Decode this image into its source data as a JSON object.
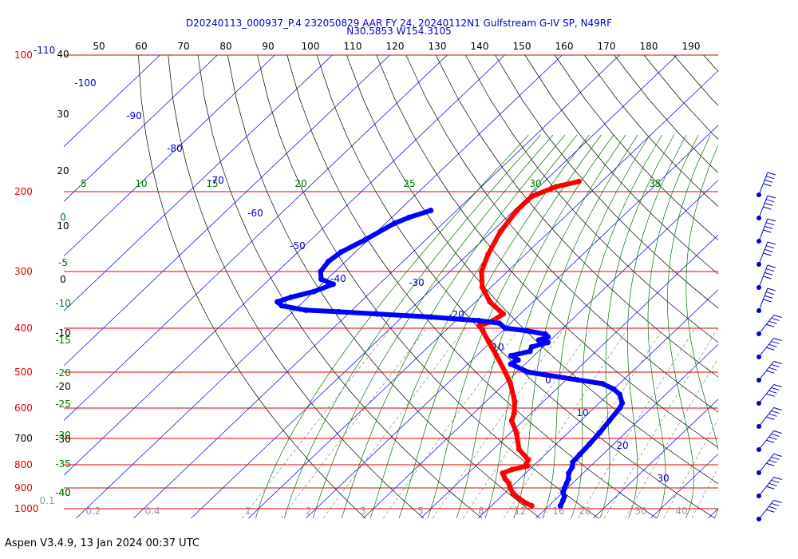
{
  "chart_data": {
    "type": "line",
    "title": "D20240113_000937_P.4 232050829 AAR FY 24, 20240112N1 Gulfstream G-IV SP, N49RF",
    "subtitle": "N30.5853 W154.3105",
    "pressure_levels": [
      {
        "label": "100",
        "p": 100,
        "color": "#e00000"
      },
      {
        "label": "200",
        "p": 200,
        "color": "#e00000"
      },
      {
        "label": "300",
        "p": 300,
        "color": "#e00000"
      },
      {
        "label": "400",
        "p": 400,
        "color": "#e00000"
      },
      {
        "label": "500",
        "p": 500,
        "color": "#e00000"
      },
      {
        "label": "600",
        "p": 600,
        "color": "#e00000"
      },
      {
        "label": "700",
        "p": 700,
        "color": "#000000"
      },
      {
        "label": "800",
        "p": 800,
        "color": "#e00000"
      },
      {
        "label": "900",
        "p": 900,
        "color": "#e00000"
      },
      {
        "label": "1000",
        "p": 1000,
        "color": "#e00000"
      }
    ],
    "top_left_extra": "-110",
    "top_ticks": [
      "50",
      "60",
      "70",
      "80",
      "90",
      "100",
      "110",
      "120",
      "130",
      "140",
      "150",
      "160",
      "170",
      "180",
      "190"
    ],
    "left_height_labels": [
      "40",
      "30",
      "20",
      "10",
      "0",
      "-10",
      "-20",
      "-30",
      "-40"
    ],
    "isotherm_labels": [
      "-100",
      "-90",
      "-80",
      "-70",
      "-60",
      "-50",
      "-40",
      "-30",
      "-20",
      "-10",
      "0",
      "10",
      "20",
      "30"
    ],
    "theta_e_top_labels": [
      "5",
      "10",
      "15",
      "20",
      "25",
      "30",
      "35"
    ],
    "theta_e_left_labels": [
      "0",
      "-5",
      "-10",
      "-15",
      "-20",
      "-25",
      "-30",
      "-35",
      "-40"
    ],
    "mixing_ratio_labels": [
      "0.1",
      "0.2",
      "0.4",
      "1",
      "2",
      "3",
      "5",
      "8",
      "12",
      "16",
      "20",
      "30",
      "40"
    ],
    "series": [
      {
        "name": "",
        "color": "#ff0000",
        "points": [
          [
            -44.0,
            190
          ],
          [
            -47.0,
            195
          ],
          [
            -49.5,
            205
          ],
          [
            -49.5,
            220
          ],
          [
            -48.5,
            245
          ],
          [
            -46.5,
            275
          ],
          [
            -44.5,
            300
          ],
          [
            -41.5,
            325
          ],
          [
            -37.5,
            350
          ],
          [
            -33.0,
            372
          ],
          [
            -33.5,
            385
          ],
          [
            -35.0,
            395
          ],
          [
            -33.5,
            405
          ],
          [
            -30.5,
            428
          ],
          [
            -26.5,
            460
          ],
          [
            -22.0,
            500
          ],
          [
            -19.0,
            530
          ],
          [
            -15.0,
            580
          ],
          [
            -13.0,
            615
          ],
          [
            -12.0,
            640
          ],
          [
            -9.0,
            680
          ],
          [
            -5.5,
            740
          ],
          [
            -2.0,
            780
          ],
          [
            -1.5,
            800
          ],
          [
            -1.0,
            805
          ],
          [
            -3.0,
            820
          ],
          [
            -4.0,
            835
          ],
          [
            -2.5,
            860
          ],
          [
            -1.0,
            880
          ],
          [
            0.0,
            900
          ],
          [
            1.5,
            925
          ],
          [
            3.5,
            950
          ],
          [
            5.5,
            972
          ],
          [
            7.0,
            985
          ]
        ]
      },
      {
        "name": "",
        "color": "#0000ff",
        "points": [
          [
            -64.5,
            220
          ],
          [
            -67.0,
            228
          ],
          [
            -68.5,
            235
          ],
          [
            -70.5,
            255
          ],
          [
            -72.5,
            272
          ],
          [
            -73.0,
            285
          ],
          [
            -72.5,
            300
          ],
          [
            -71.0,
            312
          ],
          [
            -68.0,
            320
          ],
          [
            -70.0,
            332
          ],
          [
            -73.0,
            342
          ],
          [
            -74.5,
            350
          ],
          [
            -73.0,
            357
          ],
          [
            -68.0,
            365
          ],
          [
            -62.0,
            368
          ],
          [
            -55.0,
            372
          ],
          [
            -45.0,
            378
          ],
          [
            -36.0,
            385
          ],
          [
            -32.0,
            390
          ],
          [
            -30.0,
            400
          ],
          [
            -26.0,
            405
          ],
          [
            -22.0,
            412
          ],
          [
            -21.0,
            418
          ],
          [
            -22.0,
            425
          ],
          [
            -20.0,
            430
          ],
          [
            -22.0,
            440
          ],
          [
            -21.5,
            450
          ],
          [
            -24.0,
            460
          ],
          [
            -22.0,
            470
          ],
          [
            -22.5,
            480
          ],
          [
            -18.0,
            500
          ],
          [
            -8.0,
            520
          ],
          [
            -3.0,
            530
          ],
          [
            0.0,
            545
          ],
          [
            2.0,
            560
          ],
          [
            4.0,
            585
          ],
          [
            4.5,
            600
          ],
          [
            5.0,
            640
          ],
          [
            5.5,
            680
          ],
          [
            5.8,
            720
          ],
          [
            6.0,
            760
          ],
          [
            6.2,
            790
          ],
          [
            7.0,
            810
          ],
          [
            7.5,
            835
          ],
          [
            8.5,
            860
          ],
          [
            9.0,
            880
          ],
          [
            9.5,
            900
          ],
          [
            10.0,
            920
          ],
          [
            11.0,
            940
          ],
          [
            11.5,
            960
          ],
          [
            12.0,
            985
          ]
        ]
      }
    ],
    "wind_barbs_count": 15,
    "line_colors": {
      "pressure": "#e00000",
      "isotherm": "#0000cc",
      "dry_adiabat": "#000000",
      "moist_adiabat": "#007700",
      "mixing_ratio": "#888888"
    }
  },
  "footer": "Aspen V3.4.9, 13 Jan 2024  00:37 UTC"
}
